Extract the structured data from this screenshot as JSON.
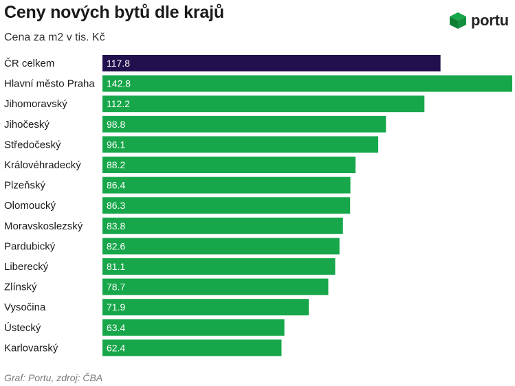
{
  "header": {
    "title": "Ceny nových bytů dle krajů",
    "subtitle": "Cena za m2 v tis. Kč"
  },
  "logo": {
    "text": "portu",
    "icon": "portu-cube-icon",
    "color": "#17a74a"
  },
  "chart_data": {
    "type": "bar",
    "orientation": "horizontal",
    "title": "Ceny nových bytů dle krajů",
    "subtitle": "Cena za m2 v tis. Kč",
    "categories": [
      "ČR celkem",
      "Hlavní město Praha",
      "Jihomoravský",
      "Jihočeský",
      "Středočeský",
      "Královéhradecký",
      "Plzeňský",
      "Olomoucký",
      "Moravskoslezský",
      "Pardubický",
      "Liberecký",
      "Zlínský",
      "Vysočina",
      "Ústecký",
      "Karlovarský"
    ],
    "values": [
      117.8,
      142.8,
      112.2,
      98.8,
      96.1,
      88.2,
      86.4,
      86.3,
      83.8,
      82.6,
      81.1,
      78.7,
      71.9,
      63.4,
      62.4
    ],
    "xlim": [
      0,
      142.8
    ],
    "grid": false,
    "data_labels": "inside-start",
    "colors": {
      "highlight": "#21104d",
      "default": "#17a74a"
    },
    "highlight_index": 0
  },
  "footer": {
    "source": "Graf: Portu, zdroj: ČBA"
  }
}
